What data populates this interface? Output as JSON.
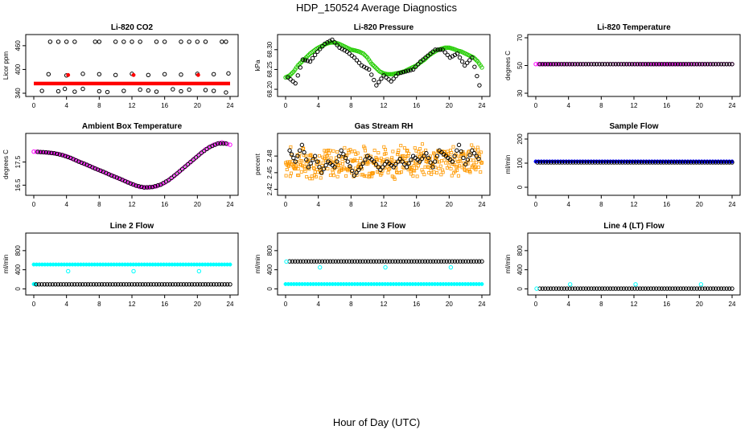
{
  "main_title": "HDP_150524  Average Diagnostics",
  "x_axis_label": "Hour of Day (UTC)",
  "colors": {
    "black": "#000000",
    "red": "#ff0000",
    "green": "#22cc00",
    "magenta": "#ff00ff",
    "orange": "#ff9900",
    "blue": "#0000ff",
    "cyan": "#00ffff"
  },
  "chart_data": [
    {
      "type": "scatter",
      "id": "co2",
      "title": "Li-820 CO2",
      "ylabel": "Licor ppm",
      "xlim": [
        0,
        24
      ],
      "ylim": [
        340,
        480
      ],
      "xticks": [
        "0",
        "4",
        "8",
        "12",
        "16",
        "20",
        "24"
      ],
      "yticks": [
        "340",
        "400",
        "460"
      ],
      "ytick_values": [
        340,
        400,
        460
      ],
      "series": [
        {
          "name": "co2_flat",
          "color": "red",
          "style": "band",
          "x": [
            0,
            24
          ],
          "values": [
            364,
            365
          ]
        },
        {
          "name": "co2_spikes_high",
          "color": "black",
          "style": "open",
          "x": [
            2,
            3,
            4,
            5,
            7.5,
            8,
            10,
            11,
            12,
            13,
            15,
            16,
            18,
            19,
            20,
            21,
            23,
            23.5
          ],
          "values": [
            470,
            470,
            470,
            470,
            470,
            470,
            470,
            470,
            470,
            470,
            470,
            470,
            470,
            470,
            470,
            470,
            470,
            470
          ]
        },
        {
          "name": "co2_mid",
          "color": "black",
          "style": "open",
          "x": [
            1.8,
            4,
            6,
            8,
            10,
            12,
            14,
            16,
            18,
            20,
            22,
            23.8
          ],
          "values": [
            388,
            385,
            389,
            388,
            386,
            389,
            386,
            388,
            387,
            389,
            388,
            390
          ]
        },
        {
          "name": "co2_low",
          "color": "black",
          "style": "open",
          "x": [
            1,
            3,
            3.8,
            5,
            6,
            8,
            9,
            11,
            13,
            14,
            15,
            17,
            18,
            19,
            21,
            22,
            23.5
          ],
          "values": [
            346,
            345,
            351,
            344,
            351,
            345,
            343,
            346,
            349,
            347,
            344,
            350,
            345,
            349,
            348,
            346,
            342
          ]
        },
        {
          "name": "co2_red_marks",
          "color": "red",
          "style": "filled",
          "x": [
            4.2,
            12.2,
            20.1
          ],
          "values": [
            386,
            386,
            386
          ]
        }
      ]
    },
    {
      "type": "scatter",
      "id": "pressure",
      "title": "Li-820 Pressure",
      "ylabel": "kPa",
      "xlim": [
        0,
        24
      ],
      "ylim": [
        68.19,
        68.33
      ],
      "xticks": [
        "0",
        "4",
        "8",
        "12",
        "16",
        "20",
        "24"
      ],
      "yticks": [
        "68.20",
        "68.25",
        "68.30"
      ],
      "ytick_values": [
        68.2,
        68.25,
        68.3
      ],
      "series": [
        {
          "name": "pressure_green",
          "color": "green",
          "style": "open",
          "x": [
            0,
            0.5,
            1,
            1.5,
            2,
            2.5,
            3,
            3.5,
            4,
            4.5,
            5,
            5.5,
            6,
            6.5,
            7,
            7.5,
            8,
            8.5,
            9,
            9.5,
            10,
            10.5,
            11,
            11.5,
            12,
            12.5,
            13,
            13.5,
            14,
            14.5,
            15,
            15.5,
            16,
            16.5,
            17,
            17.5,
            18,
            18.5,
            19,
            19.5,
            20,
            20.5,
            21,
            21.5,
            22,
            22.5,
            23,
            23.5,
            24
          ],
          "values": [
            68.23,
            68.235,
            68.245,
            68.26,
            68.27,
            68.28,
            68.29,
            68.298,
            68.305,
            68.31,
            68.315,
            68.318,
            68.318,
            68.315,
            68.31,
            68.305,
            68.3,
            68.298,
            68.295,
            68.29,
            68.28,
            68.265,
            68.255,
            68.245,
            68.24,
            68.238,
            68.238,
            68.24,
            68.242,
            68.245,
            68.25,
            68.255,
            68.26,
            68.268,
            68.275,
            68.285,
            68.292,
            68.298,
            68.302,
            68.305,
            68.305,
            68.302,
            68.298,
            68.295,
            68.29,
            68.285,
            68.28,
            68.27,
            68.255
          ]
        },
        {
          "name": "pressure_black",
          "color": "black",
          "style": "open",
          "x": [
            0.3,
            1.2,
            2.1,
            3.0,
            3.9,
            4.8,
            5.7,
            6.6,
            7.5,
            8.4,
            9.3,
            10.2,
            11.1,
            12.0,
            12.9,
            13.8,
            14.7,
            15.6,
            16.5,
            17.4,
            18.3,
            19.2,
            20.1,
            21.0,
            21.9,
            22.8,
            23.7
          ],
          "values": [
            68.23,
            68.215,
            68.275,
            68.27,
            68.295,
            68.315,
            68.325,
            68.305,
            68.295,
            68.28,
            68.26,
            68.25,
            68.21,
            68.235,
            68.22,
            68.24,
            68.245,
            68.25,
            68.27,
            68.285,
            68.3,
            68.3,
            68.28,
            68.29,
            68.26,
            68.28,
            68.21
          ]
        }
      ]
    },
    {
      "type": "scatter",
      "id": "li820temp",
      "title": "Li-820 Temperature",
      "ylabel": "degrees C",
      "xlim": [
        0,
        24
      ],
      "ylim": [
        30,
        70
      ],
      "xticks": [
        "0",
        "4",
        "8",
        "12",
        "16",
        "20",
        "24"
      ],
      "yticks": [
        "30",
        "50",
        "70"
      ],
      "ytick_values": [
        30,
        50,
        70
      ],
      "series": [
        {
          "name": "li820temp_magenta",
          "color": "magenta",
          "style": "open",
          "dense": true,
          "x": [
            0,
            24
          ],
          "values": [
            51,
            51
          ]
        },
        {
          "name": "li820temp_black",
          "color": "black",
          "style": "open",
          "dense": true,
          "x": [
            0.5,
            24
          ],
          "values": [
            51,
            51
          ]
        }
      ]
    },
    {
      "type": "scatter",
      "id": "boxtemp",
      "title": "Ambient Box Temperature",
      "ylabel": "degrees C",
      "xlim": [
        0,
        24
      ],
      "ylim": [
        16.2,
        18.6
      ],
      "xticks": [
        "0",
        "4",
        "8",
        "12",
        "16",
        "20",
        "24"
      ],
      "yticks": [
        "16.5",
        "17.5"
      ],
      "ytick_values": [
        16.5,
        17.5
      ],
      "series": [
        {
          "name": "boxtemp_magenta",
          "color": "magenta",
          "style": "open",
          "x": [
            0,
            1,
            2,
            3,
            4,
            5,
            6,
            7,
            8,
            9,
            10,
            11,
            12,
            13,
            14,
            15,
            16,
            17,
            18,
            19,
            20,
            21,
            22,
            23,
            24
          ],
          "values": [
            17.95,
            17.93,
            17.9,
            17.85,
            17.75,
            17.6,
            17.45,
            17.3,
            17.15,
            17.0,
            16.85,
            16.7,
            16.55,
            16.42,
            16.4,
            16.45,
            16.6,
            16.85,
            17.15,
            17.45,
            17.75,
            18.05,
            18.25,
            18.35,
            18.25
          ]
        },
        {
          "name": "boxtemp_black",
          "color": "black",
          "style": "open",
          "x": [
            0.5,
            1.5,
            2.5,
            3.5,
            4.5,
            5.5,
            6.5,
            7.5,
            8.5,
            9.5,
            10.5,
            11.5,
            12.5,
            13.5,
            14.5,
            15.5,
            16.5,
            17.5,
            18.5,
            19.5,
            20.5,
            21.5,
            22.5,
            23.5
          ],
          "values": [
            17.94,
            17.92,
            17.88,
            17.8,
            17.68,
            17.52,
            17.38,
            17.22,
            17.08,
            16.92,
            16.78,
            16.62,
            16.48,
            16.4,
            16.42,
            16.52,
            16.72,
            17.0,
            17.3,
            17.6,
            17.9,
            18.15,
            18.3,
            18.3
          ]
        }
      ]
    },
    {
      "type": "scatter",
      "id": "rh",
      "title": "Gas Stream RH",
      "ylabel": "percent",
      "xlim": [
        0,
        24
      ],
      "ylim": [
        2.415,
        2.515
      ],
      "xticks": [
        "0",
        "4",
        "8",
        "12",
        "16",
        "20",
        "24"
      ],
      "yticks": [
        "2.42",
        "2.45",
        "2.48"
      ],
      "ytick_values": [
        2.42,
        2.45,
        2.48
      ],
      "series": [
        {
          "name": "rh_orange",
          "color": "orange",
          "style": "open",
          "noise": true,
          "x": [
            0,
            24
          ],
          "values": [
            2.467,
            2.472
          ]
        },
        {
          "name": "rh_black",
          "color": "black",
          "style": "open",
          "x": [
            0.5,
            1.2,
            2.0,
            2.8,
            3.6,
            4.4,
            5.2,
            6.0,
            6.8,
            7.6,
            8.4,
            9.2,
            10.0,
            10.8,
            11.6,
            12.4,
            13.2,
            14.0,
            14.8,
            15.6,
            16.4,
            17.2,
            18.0,
            18.8,
            19.6,
            20.4,
            21.2,
            22.0,
            22.8,
            23.6
          ],
          "values": [
            2.49,
            2.47,
            2.5,
            2.46,
            2.48,
            2.45,
            2.47,
            2.46,
            2.49,
            2.47,
            2.445,
            2.46,
            2.48,
            2.47,
            2.455,
            2.47,
            2.46,
            2.475,
            2.46,
            2.48,
            2.47,
            2.485,
            2.46,
            2.49,
            2.48,
            2.47,
            2.5,
            2.465,
            2.49,
            2.475
          ]
        }
      ]
    },
    {
      "type": "scatter",
      "id": "sampleflow",
      "title": "Sample Flow",
      "ylabel": "ml/min",
      "xlim": [
        0,
        24
      ],
      "ylim": [
        -20,
        210
      ],
      "xticks": [
        "0",
        "4",
        "8",
        "12",
        "16",
        "20",
        "24"
      ],
      "yticks": [
        "0",
        "100",
        "200"
      ],
      "ytick_values": [
        0,
        100,
        200
      ],
      "series": [
        {
          "name": "sampleflow_blue",
          "color": "blue",
          "style": "filled",
          "dense": true,
          "x": [
            0,
            24
          ],
          "values": [
            107,
            107
          ]
        },
        {
          "name": "sampleflow_black",
          "color": "black",
          "style": "open",
          "dense": true,
          "x": [
            0.2,
            24
          ],
          "values": [
            103,
            103
          ]
        }
      ]
    },
    {
      "type": "scatter",
      "id": "line2",
      "title": "Line 2 Flow",
      "ylabel": "ml/min",
      "xlim": [
        0,
        24
      ],
      "ylim": [
        -60,
        1100
      ],
      "xticks": [
        "0",
        "4",
        "8",
        "12",
        "16",
        "20",
        "24"
      ],
      "yticks": [
        "0",
        "400",
        "800"
      ],
      "ytick_values": [
        0,
        400,
        800
      ],
      "series": [
        {
          "name": "line2_cyan_high",
          "color": "cyan",
          "style": "filled",
          "dense": true,
          "x": [
            0,
            24
          ],
          "values": [
            510,
            510
          ]
        },
        {
          "name": "line2_cyan_dips",
          "color": "cyan",
          "style": "open",
          "x": [
            4.2,
            12.2,
            20.2
          ],
          "values": [
            370,
            370,
            370
          ]
        },
        {
          "name": "line2_cyan_low",
          "color": "cyan",
          "style": "filled",
          "x": [
            0,
            0.2
          ],
          "values": [
            100,
            100
          ]
        },
        {
          "name": "line2_black",
          "color": "black",
          "style": "open",
          "dense": true,
          "x": [
            0.3,
            24
          ],
          "values": [
            95,
            95
          ]
        }
      ]
    },
    {
      "type": "scatter",
      "id": "line3",
      "title": "Line 3 Flow",
      "ylabel": "ml/min",
      "xlim": [
        0,
        24
      ],
      "ylim": [
        -60,
        1100
      ],
      "xticks": [
        "0",
        "4",
        "8",
        "12",
        "16",
        "20",
        "24"
      ],
      "yticks": [
        "0",
        "400",
        "800"
      ],
      "ytick_values": [
        0,
        400,
        800
      ],
      "series": [
        {
          "name": "line3_black",
          "color": "black",
          "style": "open",
          "dense": true,
          "x": [
            0.5,
            24
          ],
          "values": [
            575,
            575
          ]
        },
        {
          "name": "line3_cyan_start",
          "color": "cyan",
          "style": "open",
          "x": [
            0.1
          ],
          "values": [
            570
          ]
        },
        {
          "name": "line3_cyan_dips",
          "color": "cyan",
          "style": "open",
          "x": [
            4.2,
            12.2,
            20.2
          ],
          "values": [
            450,
            450,
            450
          ]
        },
        {
          "name": "line3_cyan_low",
          "color": "cyan",
          "style": "filled",
          "dense": true,
          "x": [
            0,
            24
          ],
          "values": [
            100,
            100
          ]
        }
      ]
    },
    {
      "type": "scatter",
      "id": "line4",
      "title": "Line 4 (LT) Flow",
      "ylabel": "ml/min",
      "xlim": [
        0,
        24
      ],
      "ylim": [
        -60,
        1100
      ],
      "xticks": [
        "0",
        "4",
        "8",
        "12",
        "16",
        "20",
        "24"
      ],
      "yticks": [
        "0",
        "400",
        "800"
      ],
      "ytick_values": [
        0,
        400,
        800
      ],
      "series": [
        {
          "name": "line4_black",
          "color": "black",
          "style": "open",
          "dense": true,
          "x": [
            0.5,
            24
          ],
          "values": [
            5,
            5
          ]
        },
        {
          "name": "line4_cyan_start",
          "color": "cyan",
          "style": "open",
          "x": [
            0.1
          ],
          "values": [
            5
          ]
        },
        {
          "name": "line4_cyan_marks",
          "color": "cyan",
          "style": "open",
          "x": [
            4.2,
            12.2,
            20.2
          ],
          "values": [
            95,
            95,
            95
          ]
        }
      ]
    }
  ]
}
